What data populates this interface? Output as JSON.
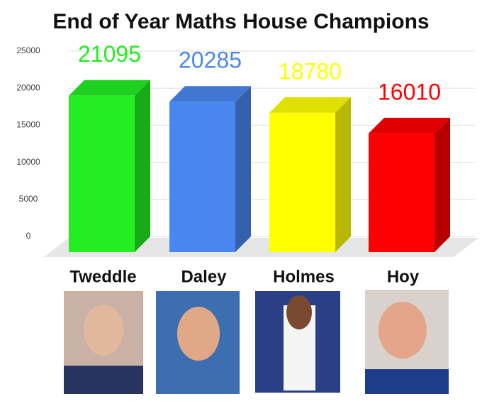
{
  "chart_data": {
    "type": "bar3d",
    "title": "End of Year Maths House Champions",
    "categories": [
      "Tweddle",
      "Daley",
      "Holmes",
      "Hoy"
    ],
    "values": [
      21095,
      20285,
      18780,
      16010
    ],
    "colors": [
      "#22ee22",
      "#4a86f0",
      "#ffff00",
      "#ff0000"
    ],
    "ylim": [
      0,
      25000
    ],
    "yticks": [
      0,
      5000,
      10000,
      15000,
      20000,
      25000
    ],
    "grid": true
  }
}
